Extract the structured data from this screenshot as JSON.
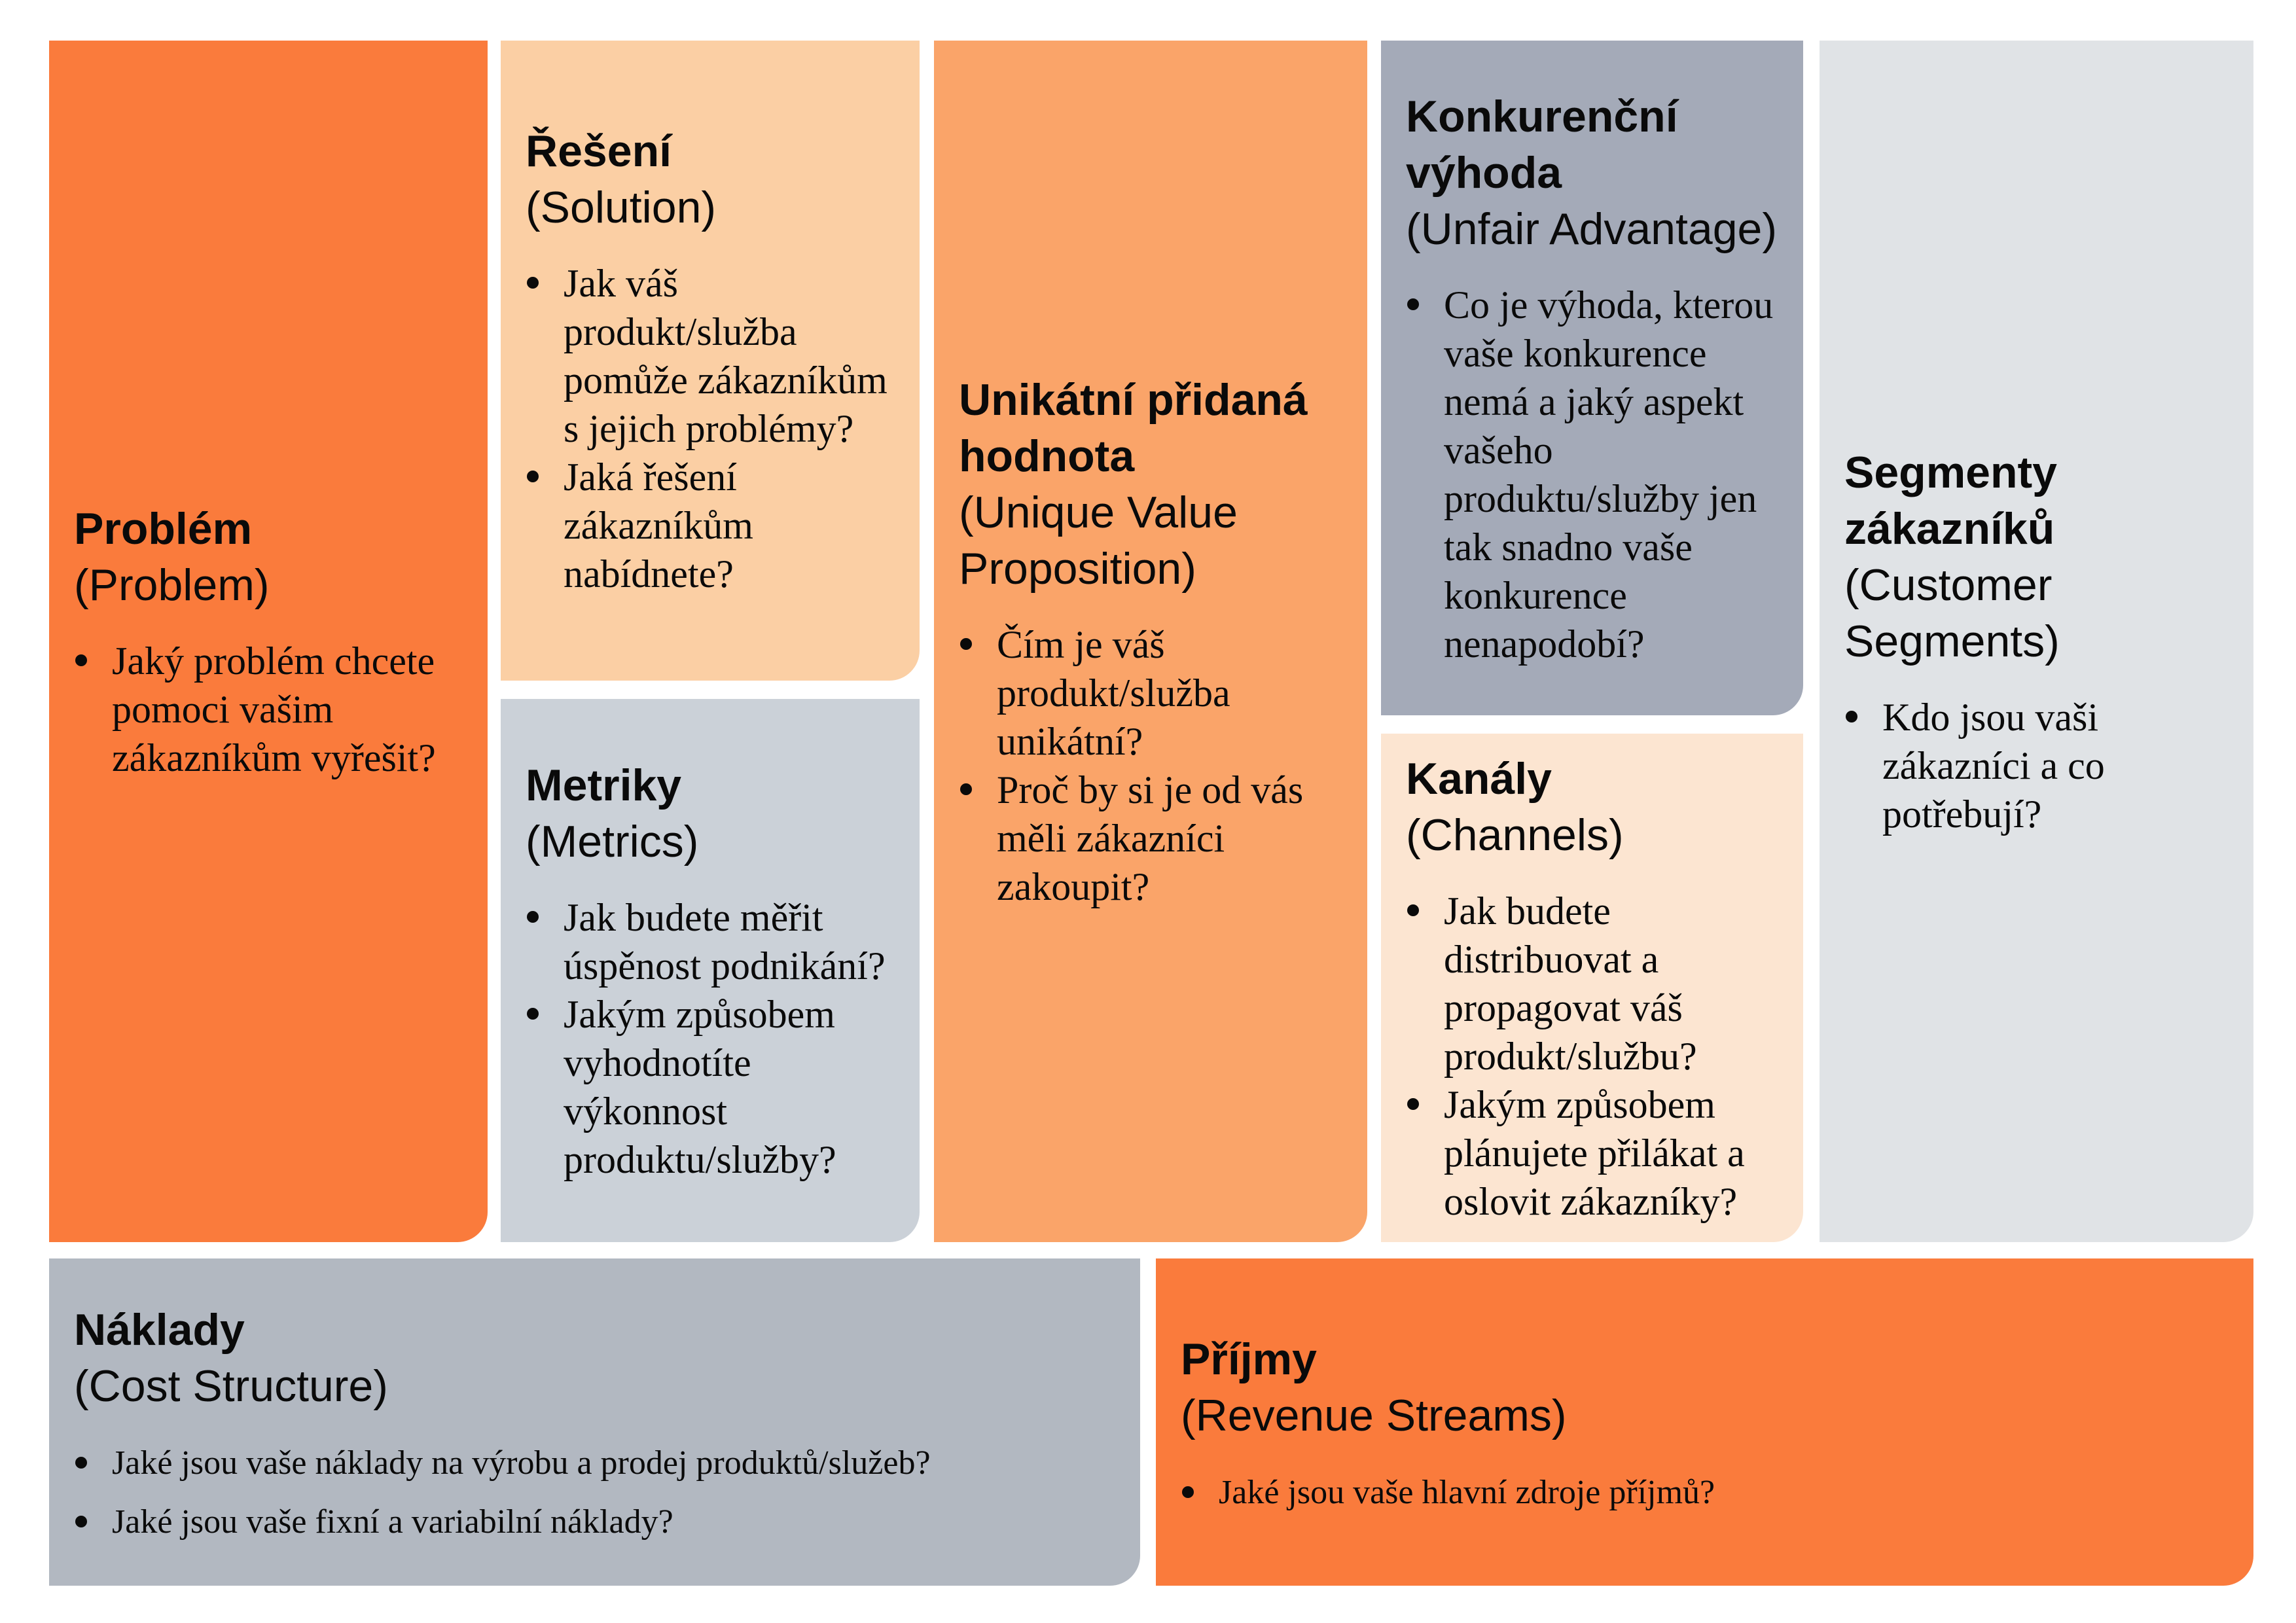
{
  "canvas_type": "lean-canvas",
  "colors": {
    "background": "#FFFFFF",
    "text": "#0A0A0A",
    "orange": "#FA7B3C",
    "orange_light": "#FAA469",
    "peach": "#FBCFA4",
    "peach_light": "#FCE5D1",
    "gray_blue": "#A4AAB8",
    "gray_medium": "#B2B8C1",
    "gray_light": "#CBD1D8",
    "gray_pale": "#E0E3E6"
  },
  "blocks": {
    "problem": {
      "title": "Problém",
      "subtitle": "(Problem)",
      "color": "#FA7B3C",
      "bullets": [
        "Jaký problém chcete pomoci vašim zákazníkům vyřešit?"
      ]
    },
    "solution": {
      "title": "Řešení",
      "subtitle": "(Solution)",
      "color": "#FBCFA4",
      "bullets": [
        "Jak váš produkt/služba pomůže zákazníkům s jejich problémy?",
        "Jaká řešení zákazníkům nabídnete?"
      ]
    },
    "metrics": {
      "title": "Metriky",
      "subtitle": "(Metrics)",
      "color": "#CBD1D8",
      "bullets": [
        "Jak budete měřit úspěnost podnikání?",
        "Jakým způsobem vyhodnotíte výkonnost produktu/služby?"
      ]
    },
    "uvp": {
      "title": "Unikátní přidaná hodnota",
      "subtitle": "(Unique Value Proposition)",
      "color": "#FAA469",
      "bullets": [
        "Čím je váš produkt/služba unikátní?",
        "Proč by si je od vás měli zákazníci zakoupit?"
      ]
    },
    "unfair": {
      "title": "Konkurenční výhoda",
      "subtitle": "(Unfair Advantage)",
      "color": "#A4AAB8",
      "bullets": [
        "Co je výhoda, kterou vaše konkurence nemá a jaký aspekt vašeho produktu/služby jen tak snadno vaše konkurence nenapodobí?"
      ]
    },
    "channels": {
      "title": "Kanály",
      "subtitle": "(Channels)",
      "color": "#FCE5D1",
      "bullets": [
        "Jak budete distribuovat a propagovat váš produkt/službu?",
        "Jakým způsobem plánujete přilákat a oslovit zákazníky?"
      ]
    },
    "segments": {
      "title": "Segmenty zákazníků",
      "subtitle": "(Customer Segments)",
      "color": "#E0E3E6",
      "bullets": [
        "Kdo jsou vaši zákazníci a co potřebují?"
      ]
    },
    "costs": {
      "title": "Náklady",
      "subtitle": "(Cost Structure)",
      "color": "#B2B8C1",
      "bullets": [
        "Jaké jsou vaše náklady na výrobu a prodej produktů/služeb?",
        "Jaké jsou vaše fixní a variabilní náklady?"
      ]
    },
    "revenue": {
      "title": "Příjmy",
      "subtitle": "(Revenue Streams)",
      "color": "#FA7B3C",
      "bullets": [
        "Jaké jsou vaše hlavní zdroje příjmů?"
      ]
    }
  }
}
